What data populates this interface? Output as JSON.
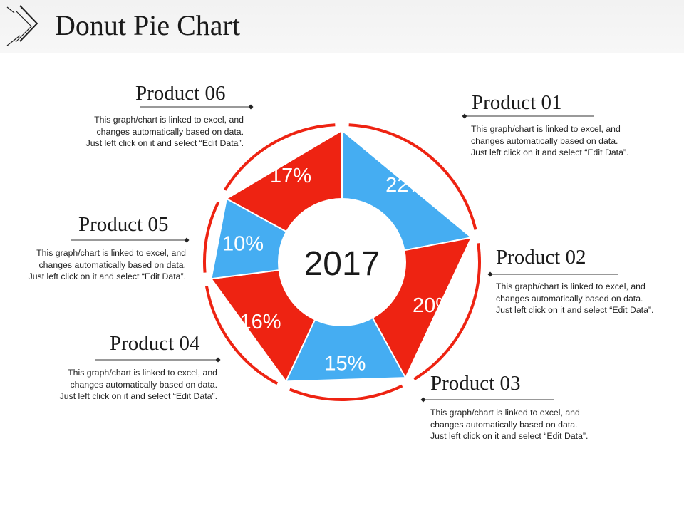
{
  "header": {
    "title": "Donut Pie Chart"
  },
  "chart_data": {
    "type": "pie",
    "center_label": "2017",
    "categories": [
      "Product 01",
      "Product 02",
      "Product 03",
      "Product 04",
      "Product 05",
      "Product 06"
    ],
    "values": [
      22,
      20,
      15,
      16,
      10,
      17
    ],
    "value_labels": [
      "22%",
      "20%",
      "15%",
      "16%",
      "10%",
      "17%"
    ],
    "colors": [
      "#45adf2",
      "#ee2312",
      "#45adf2",
      "#ee2312",
      "#45adf2",
      "#ee2312"
    ]
  },
  "products": [
    {
      "title": "Product 01",
      "desc": "This graph/chart is linked to excel, and changes automatically based on data. Just left click on it and select “Edit Data”."
    },
    {
      "title": "Product 02",
      "desc": "This graph/chart is linked to excel, and changes automatically based on data. Just left click on it and select “Edit Data”."
    },
    {
      "title": "Product 03",
      "desc": "This graph/chart is linked to excel, and changes automatically based on data. Just left click on it and select “Edit Data”."
    },
    {
      "title": "Product 04",
      "desc": "This graph/chart is linked to excel, and changes automatically based on data. Just left click on it and select “Edit Data”."
    },
    {
      "title": "Product 05",
      "desc": "This graph/chart is linked to excel, and changes automatically based on data. Just left click on it and select “Edit Data”."
    },
    {
      "title": "Product 06",
      "desc": "This graph/chart is linked to excel, and changes automatically based on data. Just left click on it and select “Edit Data”."
    }
  ],
  "colors": {
    "ring": "#ee2312",
    "connector": "#333333"
  }
}
